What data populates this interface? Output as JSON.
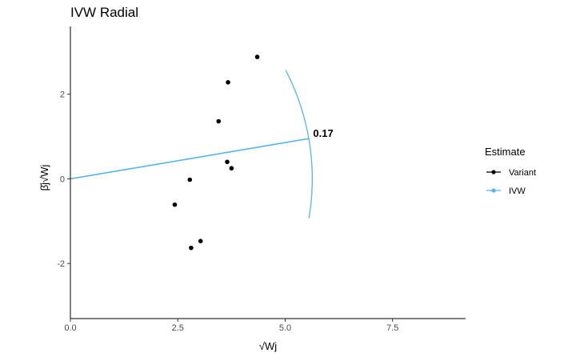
{
  "chart_data": {
    "type": "scatter",
    "title": "IVW Radial",
    "xlabel": "√Wj",
    "ylabel": "β̂j√Wj",
    "xlim": [
      0,
      9.2
    ],
    "ylim": [
      -3.3,
      3.6
    ],
    "x_ticks": [
      {
        "value": 0,
        "label": "0.0"
      },
      {
        "value": 2.5,
        "label": "2.5"
      },
      {
        "value": 5,
        "label": "5.0"
      },
      {
        "value": 7.5,
        "label": "7.5"
      }
    ],
    "y_ticks": [
      {
        "value": 2,
        "label": "2"
      },
      {
        "value": 0,
        "label": "0"
      },
      {
        "value": -2,
        "label": "-2"
      }
    ],
    "grid": false,
    "legend": {
      "position": "right",
      "title": "Estimate",
      "entries": [
        {
          "label": "Variant",
          "color": "#000000"
        },
        {
          "label": "IVW",
          "color": "#56B4E9"
        }
      ]
    },
    "series": [
      {
        "name": "Variant",
        "color": "#000000",
        "points": [
          {
            "x": 4.35,
            "y": 2.88
          },
          {
            "x": 3.67,
            "y": 2.28
          },
          {
            "x": 3.45,
            "y": 1.36
          },
          {
            "x": 3.65,
            "y": 0.4
          },
          {
            "x": 3.75,
            "y": 0.25
          },
          {
            "x": 2.78,
            "y": -0.02
          },
          {
            "x": 2.43,
            "y": -0.61
          },
          {
            "x": 3.03,
            "y": -1.47
          },
          {
            "x": 2.81,
            "y": -1.63
          }
        ]
      },
      {
        "name": "IVW",
        "color": "#56B4E9",
        "line": {
          "x0": 0,
          "y0": 0,
          "x1": 5.55,
          "y1": 0.95
        },
        "arc": {
          "radius": 5.63,
          "y_from": -0.93,
          "y_to": 2.57
        },
        "annotation": {
          "text": "0.17",
          "x": 5.65,
          "y": 0.99
        }
      }
    ]
  }
}
